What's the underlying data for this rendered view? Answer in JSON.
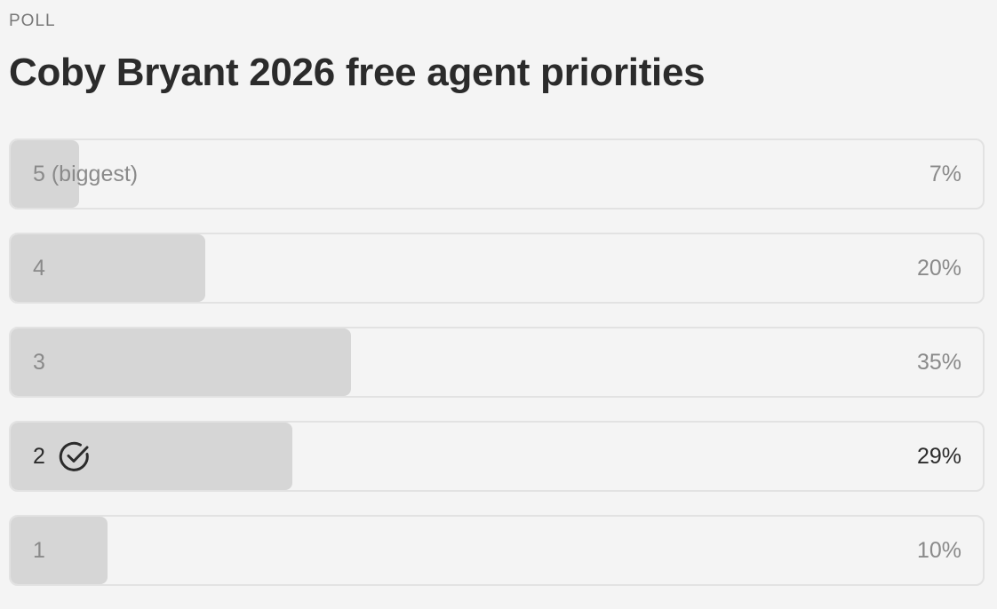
{
  "poll": {
    "kicker": "POLL",
    "title": "Coby Bryant 2026 free agent priorities",
    "selected_index": 3,
    "colors": {
      "fill": "#d6d6d6",
      "muted_text": "#8a8a8a",
      "selected_text": "#2b2b2b",
      "border": "#e2e2e2"
    },
    "options": [
      {
        "label": "5 (biggest)",
        "percent_label": "7%",
        "percent": 7
      },
      {
        "label": "4",
        "percent_label": "20%",
        "percent": 20
      },
      {
        "label": "3",
        "percent_label": "35%",
        "percent": 35
      },
      {
        "label": "2",
        "percent_label": "29%",
        "percent": 29,
        "icon": "check-circle-icon"
      },
      {
        "label": "1",
        "percent_label": "10%",
        "percent": 10
      }
    ]
  }
}
